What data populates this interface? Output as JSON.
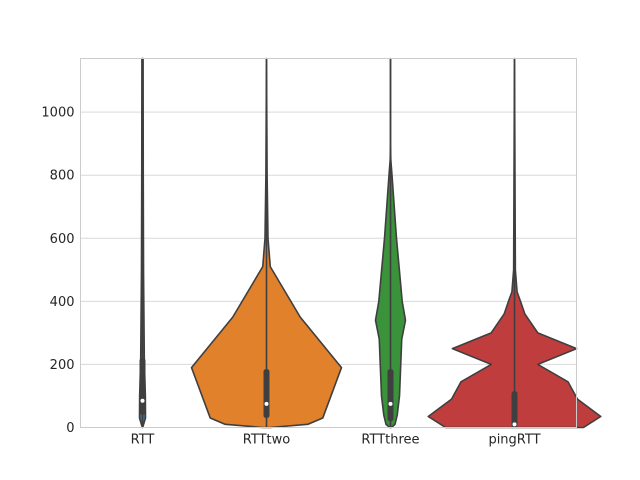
{
  "chart_data": {
    "type": "violin",
    "title": "",
    "xlabel": "",
    "ylabel": "",
    "ylim": [
      0,
      1170
    ],
    "yticks": [
      0,
      200,
      400,
      600,
      800,
      1000
    ],
    "grid": true,
    "categories": [
      "RTT",
      "RTTtwo",
      "RTTthree",
      "pingRTT"
    ],
    "violins": [
      {
        "category": "RTT",
        "color": "#3274a1",
        "max_density_ratio": 0.04,
        "profile": [
          [
            0,
            0.05
          ],
          [
            30,
            1.0
          ],
          [
            100,
            0.95
          ],
          [
            220,
            0.6
          ],
          [
            490,
            0.35
          ],
          [
            800,
            0.25
          ],
          [
            1170,
            0.2
          ]
        ],
        "whisker": [
          0,
          1170
        ],
        "iqr": [
          40,
          220
        ],
        "median": 85
      },
      {
        "category": "RTTtwo",
        "color": "#e1812c",
        "max_density_ratio": 1.0,
        "profile": [
          [
            0,
            0.05
          ],
          [
            10,
            0.55
          ],
          [
            30,
            0.75
          ],
          [
            190,
            1.0
          ],
          [
            350,
            0.45
          ],
          [
            510,
            0.05
          ],
          [
            600,
            0.02
          ],
          [
            800,
            0.008
          ],
          [
            1170,
            0.0
          ]
        ],
        "whisker": [
          0,
          1170
        ],
        "iqr": [
          30,
          185
        ],
        "median": 75
      },
      {
        "category": "RTTthree",
        "color": "#3a923a",
        "max_density_ratio": 0.2,
        "profile": [
          [
            0,
            0.05
          ],
          [
            10,
            0.3
          ],
          [
            40,
            0.45
          ],
          [
            100,
            0.6
          ],
          [
            280,
            0.75
          ],
          [
            340,
            1.0
          ],
          [
            400,
            0.78
          ],
          [
            600,
            0.4
          ],
          [
            800,
            0.1
          ],
          [
            850,
            0.02
          ],
          [
            900,
            0.0
          ],
          [
            1170,
            0.0
          ]
        ],
        "whisker": [
          0,
          1170
        ],
        "iqr": [
          20,
          185
        ],
        "median": 75
      },
      {
        "category": "pingRTT",
        "color": "#c03d3e",
        "max_density_ratio": 1.15,
        "profile": [
          [
            0,
            0.8
          ],
          [
            35,
            1.0
          ],
          [
            90,
            0.73
          ],
          [
            145,
            0.62
          ],
          [
            200,
            0.27
          ],
          [
            250,
            0.72
          ],
          [
            300,
            0.27
          ],
          [
            360,
            0.12
          ],
          [
            400,
            0.07
          ],
          [
            430,
            0.03
          ],
          [
            500,
            0.01
          ],
          [
            1170,
            0.0
          ]
        ],
        "whisker": [
          0,
          1170
        ],
        "iqr": [
          0,
          115
        ],
        "median": 10
      }
    ]
  }
}
